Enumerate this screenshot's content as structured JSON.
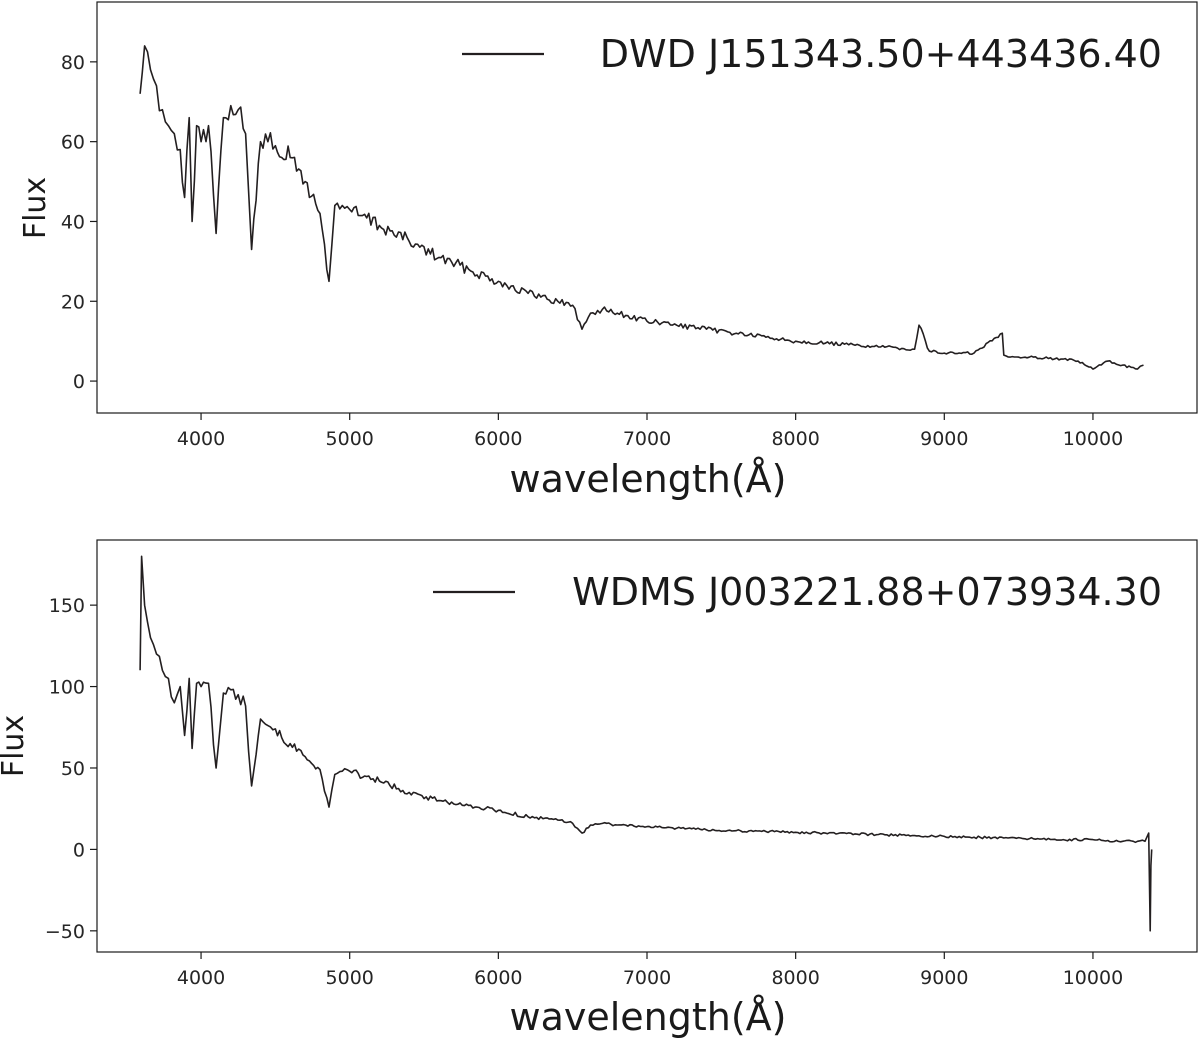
{
  "chart_data": [
    {
      "type": "line",
      "xlabel": "wavelength(Å)",
      "ylabel": "Flux",
      "xlim": [
        3300,
        10700
      ],
      "ylim": [
        -8,
        95
      ],
      "xticks": [
        4000,
        5000,
        6000,
        7000,
        8000,
        9000,
        10000
      ],
      "yticks": [
        0,
        20,
        40,
        60,
        80
      ],
      "grid": false,
      "legend_position": "top-right",
      "series": [
        {
          "name": "DWD J151343.50+443436.40",
          "color": "#231f20",
          "x": [
            3590,
            3620,
            3660,
            3700,
            3740,
            3780,
            3820,
            3860,
            3889,
            3920,
            3940,
            3970,
            4000,
            4050,
            4101,
            4150,
            4200,
            4250,
            4300,
            4340,
            4400,
            4450,
            4500,
            4600,
            4700,
            4800,
            4861,
            4900,
            4950,
            5000,
            5200,
            5400,
            5600,
            5800,
            6000,
            6200,
            6400,
            6500,
            6563,
            6620,
            6700,
            6800,
            7000,
            7200,
            7400,
            7600,
            7800,
            8000,
            8200,
            8400,
            8600,
            8800,
            8830,
            8900,
            9000,
            9200,
            9390,
            9400,
            9500,
            9600,
            9800,
            9900,
            10000,
            10100,
            10200,
            10300,
            10340
          ],
          "y": [
            72,
            84,
            78,
            74,
            68,
            64,
            62,
            58,
            46,
            66,
            40,
            64,
            60,
            64,
            37,
            66,
            69,
            68,
            62,
            33,
            60,
            60,
            59,
            56,
            50,
            42,
            25,
            44,
            44,
            43,
            39,
            35,
            31,
            28,
            25,
            22,
            20,
            19,
            13,
            17,
            18,
            17,
            15,
            14,
            13,
            12,
            11,
            10,
            9.5,
            9,
            8.5,
            8,
            14,
            7.5,
            7,
            7,
            12,
            6.5,
            6,
            6,
            5.5,
            5,
            3,
            5,
            4,
            3,
            4
          ]
        }
      ]
    },
    {
      "type": "line",
      "xlabel": "wavelength(Å)",
      "ylabel": "Flux",
      "xlim": [
        3300,
        10700
      ],
      "ylim": [
        -63,
        190
      ],
      "xticks": [
        4000,
        5000,
        6000,
        7000,
        8000,
        9000,
        10000
      ],
      "yticks": [
        -50,
        0,
        50,
        100,
        150
      ],
      "grid": false,
      "legend_position": "top-right",
      "series": [
        {
          "name": "WDMS J003221.88+073934.30",
          "color": "#231f20",
          "x": [
            3590,
            3600,
            3620,
            3660,
            3700,
            3740,
            3780,
            3820,
            3860,
            3889,
            3920,
            3940,
            3970,
            4000,
            4050,
            4101,
            4150,
            4200,
            4250,
            4300,
            4340,
            4400,
            4450,
            4500,
            4600,
            4700,
            4800,
            4861,
            4900,
            4950,
            5000,
            5200,
            5400,
            5600,
            5800,
            6000,
            6200,
            6400,
            6500,
            6563,
            6620,
            6700,
            6800,
            7000,
            7200,
            7400,
            7600,
            7800,
            8000,
            8200,
            8400,
            8600,
            8800,
            9000,
            9200,
            9400,
            9600,
            9800,
            10000,
            10100,
            10200,
            10300,
            10350,
            10375,
            10385,
            10390,
            10395
          ],
          "y": [
            110,
            180,
            150,
            130,
            120,
            110,
            105,
            90,
            100,
            70,
            105,
            62,
            102,
            100,
            102,
            50,
            96,
            98,
            95,
            88,
            39,
            80,
            76,
            74,
            65,
            57,
            49,
            26,
            46,
            48,
            48,
            42,
            35,
            30,
            27,
            24,
            20,
            18,
            16,
            10,
            15,
            16,
            15,
            14,
            13,
            12,
            11.5,
            11,
            10.5,
            10,
            9.5,
            9,
            8.5,
            8,
            7.5,
            7,
            6.5,
            6,
            6,
            5.5,
            5,
            5,
            5,
            10,
            -50,
            -10,
            0
          ]
        }
      ]
    }
  ]
}
